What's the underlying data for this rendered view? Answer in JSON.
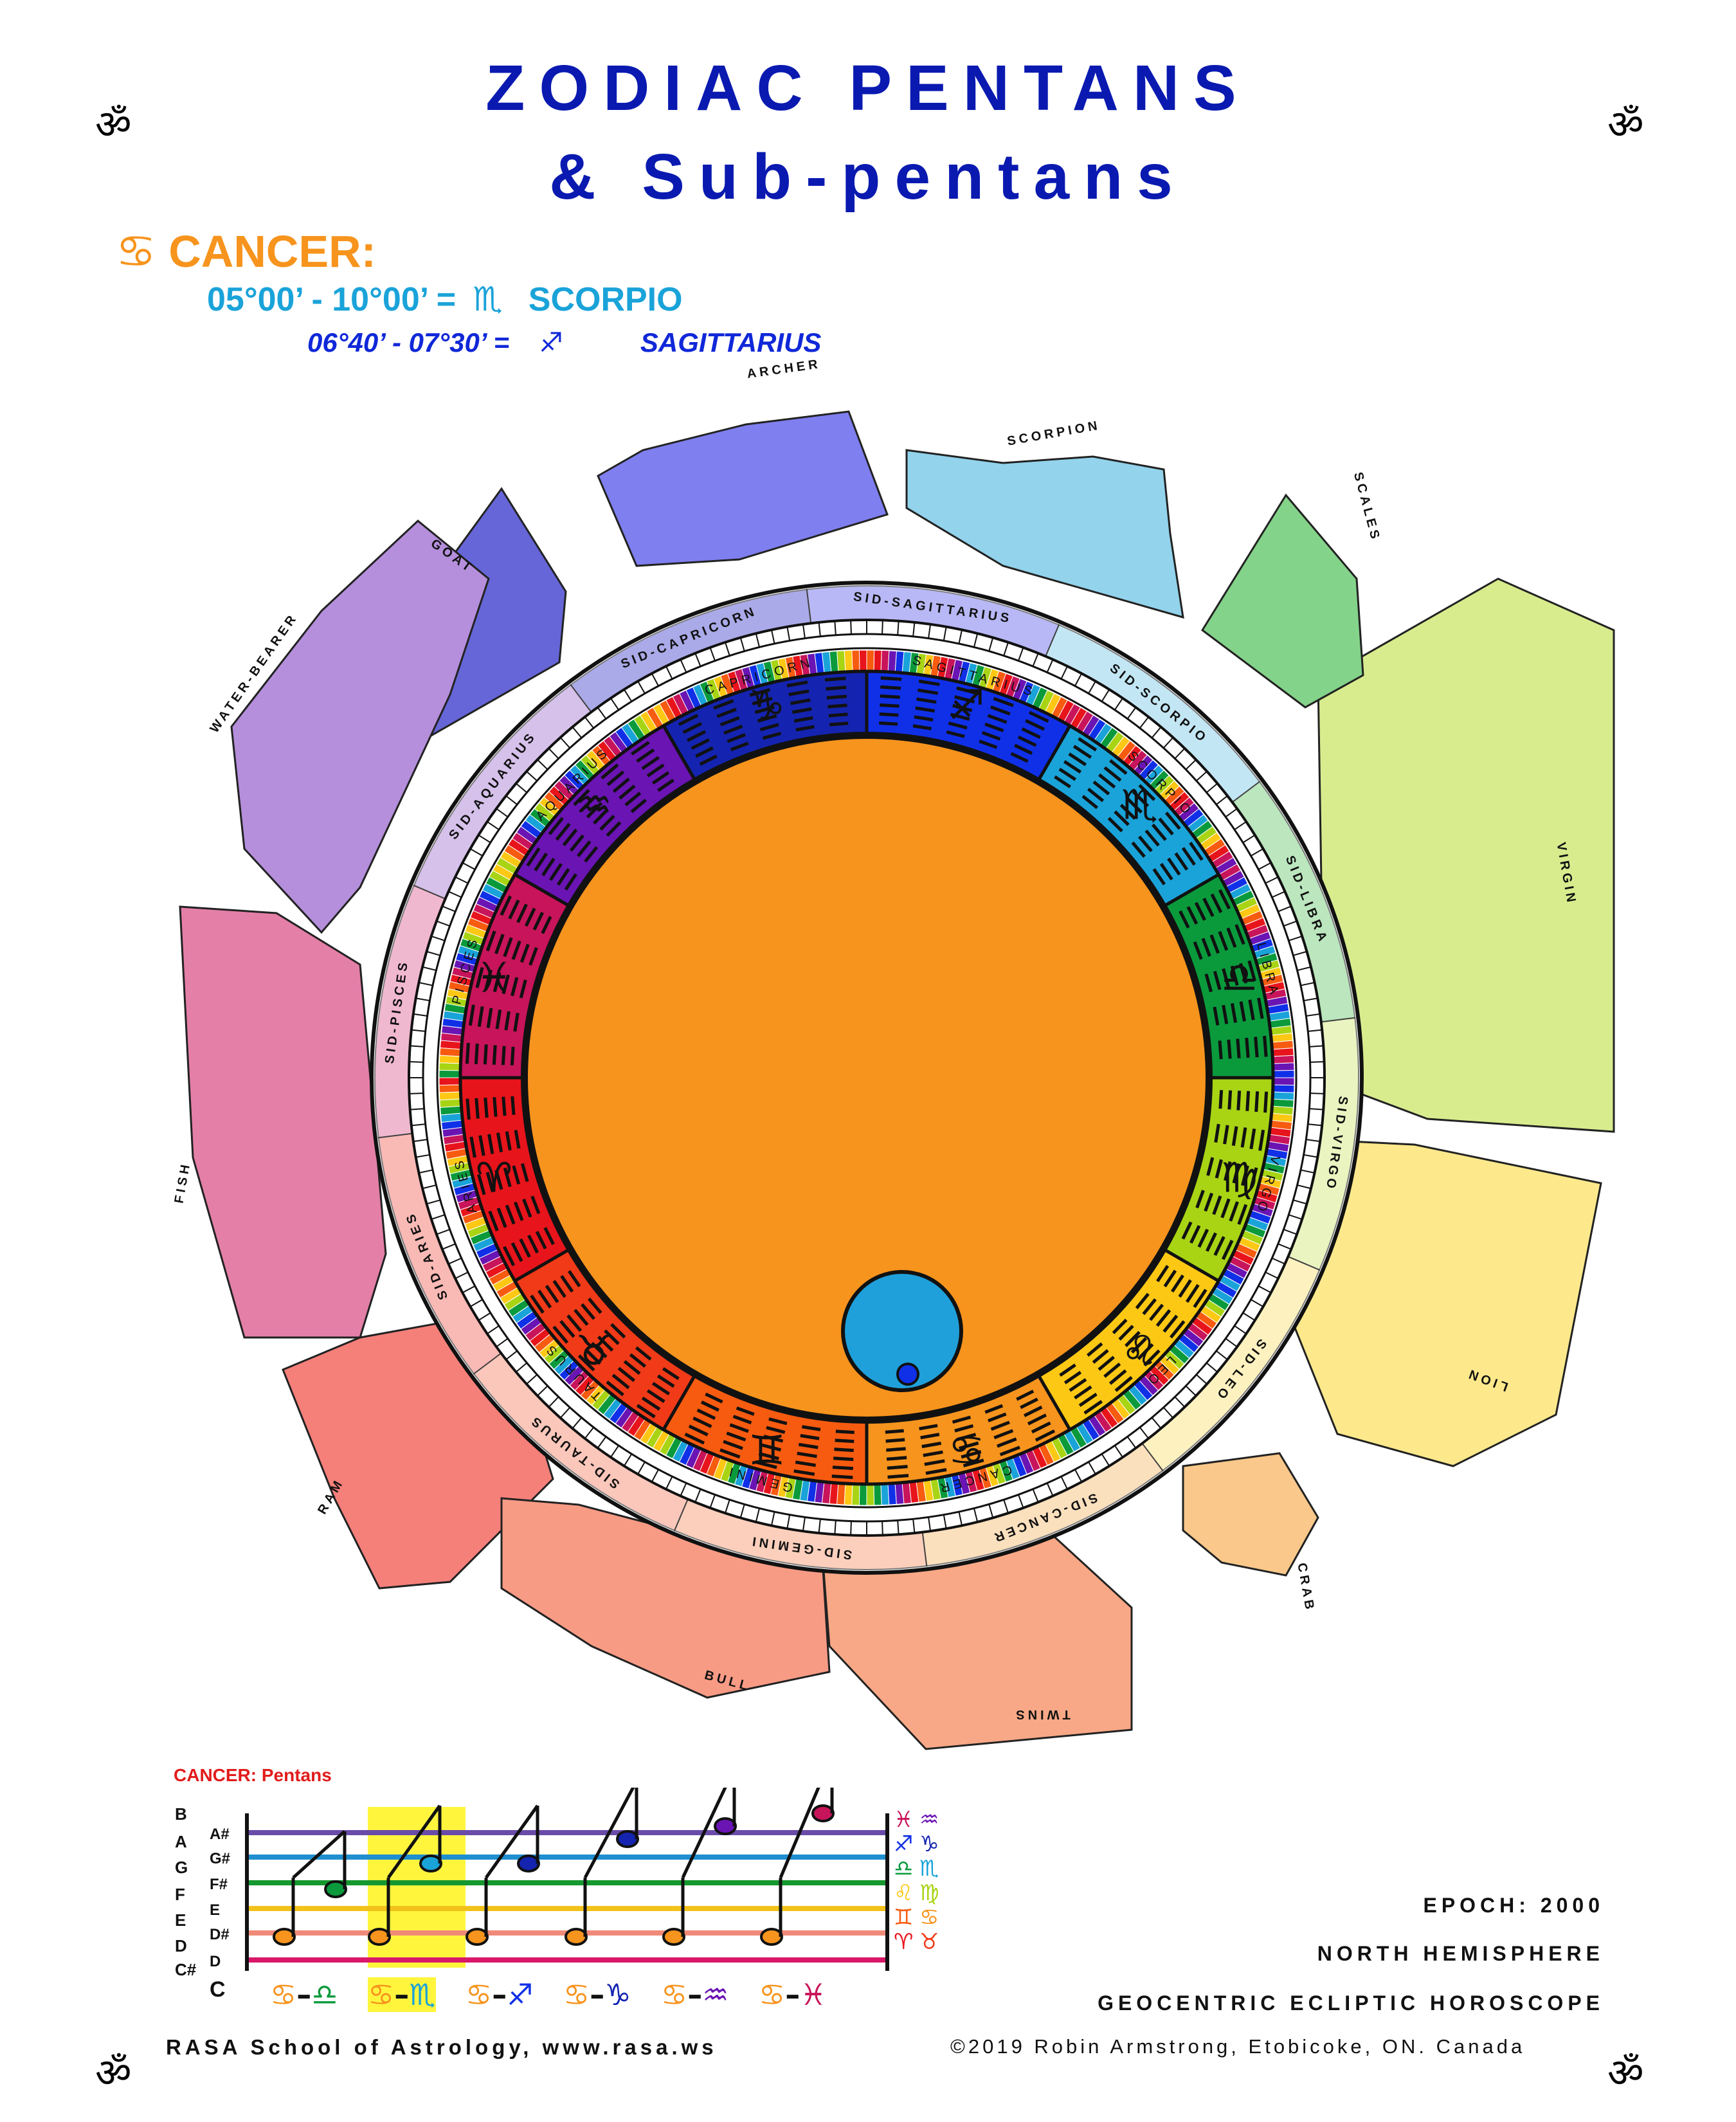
{
  "title": {
    "line1": "ZODIAC PENTANS",
    "line2": "& Sub-pentans"
  },
  "om_symbol": "ॐ",
  "header": {
    "sign_glyph": "♋",
    "sign_label": "CANCER:",
    "pentan_range": "05°00’ - 10°00’ =",
    "pentan_glyph": "♏",
    "pentan_sign": "SCORPIO",
    "sub_range": "06°40’ - 07°30’ =",
    "sub_glyph": "♐",
    "sub_sign": "SAGITTARIUS"
  },
  "wheel": {
    "center_color": "#f7941d",
    "highlight_circle_color": "#1fa0da",
    "signs": [
      {
        "name": "ARIES",
        "glyph": "♈",
        "color": "#e8141c"
      },
      {
        "name": "TAURUS",
        "glyph": "♉",
        "color": "#f03a18"
      },
      {
        "name": "GEMINI",
        "glyph": "♊",
        "color": "#f75b10"
      },
      {
        "name": "CANCER",
        "glyph": "♋",
        "color": "#f7941d"
      },
      {
        "name": "LEO",
        "glyph": "♌",
        "color": "#fcc814"
      },
      {
        "name": "VIRGO",
        "glyph": "♍",
        "color": "#a8d414"
      },
      {
        "name": "LIBRA",
        "glyph": "♎",
        "color": "#0a9a3c"
      },
      {
        "name": "SCORPIO",
        "glyph": "♏",
        "color": "#1aa3d9"
      },
      {
        "name": "SAGITTARIUS",
        "glyph": "♐",
        "color": "#1030e8"
      },
      {
        "name": "CAPRICORN",
        "glyph": "♑",
        "color": "#1424b0"
      },
      {
        "name": "AQUARIUS",
        "glyph": "♒",
        "color": "#6a14b4"
      },
      {
        "name": "PISCES",
        "glyph": "♓",
        "color": "#c8145a"
      }
    ],
    "sidereal": [
      "SID-ARIES",
      "SID-TAURUS",
      "SID-GEMINI",
      "SID-CANCER",
      "SID-LEO",
      "SID-VIRGO",
      "SID-LIBRA",
      "SID-SCORPIO",
      "SID-SAGITTARIUS",
      "SID-CAPRICORN",
      "SID-AQUARIUS",
      "SID-PISCES"
    ],
    "constellations": [
      "RAM",
      "BULL",
      "TWINS",
      "CRAB",
      "LION",
      "VIRGIN",
      "SCALES",
      "SCORPION",
      "ARCHER",
      "GOAT",
      "WATER-BEARER",
      "FISH"
    ],
    "constellation_colors": [
      "#f5807a",
      "#f89b85",
      "#f8a886",
      "#f9c88a",
      "#fde98c",
      "#d8ec8e",
      "#84d38a",
      "#93d3ec",
      "#7f7ff0",
      "#6666d8",
      "#b58fdc",
      "#e47fa8"
    ]
  },
  "pentans_chart": {
    "title": "CANCER: Pentans",
    "left_notes": [
      "B",
      "A",
      "G",
      "F",
      "E",
      "D",
      "C#",
      "C"
    ],
    "staff_notes": [
      "A#",
      "G#",
      "F#",
      "E",
      "D#",
      "D",
      "C"
    ],
    "line_colors": [
      "#6a4ca8",
      "#1f8fd0",
      "#15982f",
      "#f2c21b",
      "#f08a78",
      "#d9186a"
    ],
    "right_glyphs": [
      {
        "glyph": "♓",
        "color": "#c8145a"
      },
      {
        "glyph": "♒",
        "color": "#6a14b4"
      },
      {
        "glyph": "♐",
        "color": "#1030e8"
      },
      {
        "glyph": "♑",
        "color": "#1424b0"
      },
      {
        "glyph": "♎",
        "color": "#0a9a3c"
      },
      {
        "glyph": "♏",
        "color": "#1aa3d9"
      },
      {
        "glyph": "♌",
        "color": "#fcc814"
      },
      {
        "glyph": "♍",
        "color": "#a8d414"
      },
      {
        "glyph": "♊",
        "color": "#f75b10"
      },
      {
        "glyph": "♋",
        "color": "#f7941d"
      },
      {
        "glyph": "♈",
        "color": "#e8141c"
      },
      {
        "glyph": "♉",
        "color": "#f03a18"
      }
    ],
    "pairs": [
      {
        "a": "♋",
        "b": "♎",
        "b_color": "#0a9a3c"
      },
      {
        "a": "♋",
        "b": "♏",
        "b_color": "#1aa3d9"
      },
      {
        "a": "♋",
        "b": "♐",
        "b_color": "#1030e8"
      },
      {
        "a": "♋",
        "b": "♑",
        "b_color": "#1424b0"
      },
      {
        "a": "♋",
        "b": "♒",
        "b_color": "#6a14b4"
      },
      {
        "a": "♋",
        "b": "♓",
        "b_color": "#c8145a"
      }
    ],
    "highlight_index": 1
  },
  "footer": {
    "epoch": "EPOCH: 2000",
    "hemisphere": "NORTH HEMISPHERE",
    "horoscope": "GEOCENTRIC ECLIPTIC HOROSCOPE",
    "school": "RASA School of Astrology, www.rasa.ws",
    "copyright": "©2019 Robin Armstrong, Etobicoke, ON. Canada"
  }
}
